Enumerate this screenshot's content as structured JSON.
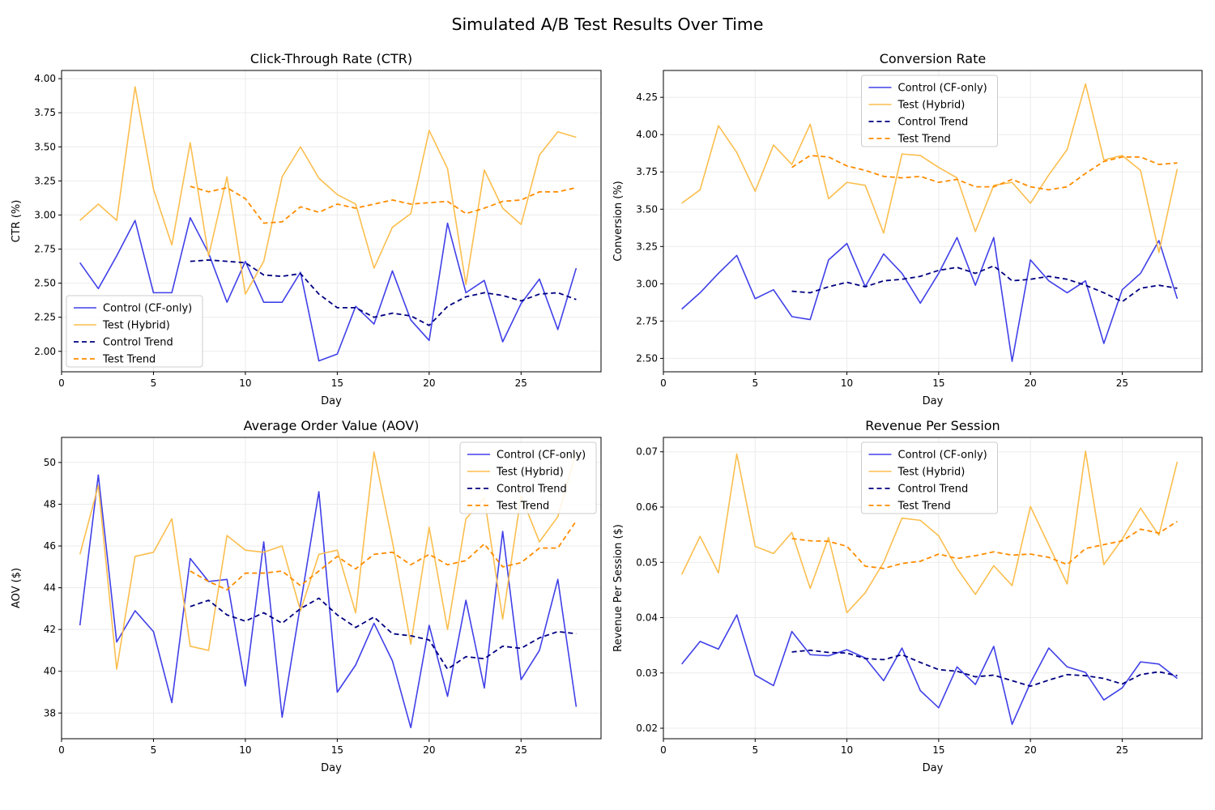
{
  "figure_title": "Simulated A/B Test Results Over Time",
  "colors": {
    "control": "#4040e8",
    "test": "#fbbe4e",
    "control_trend": "#000080",
    "test_trend": "#ff8c00",
    "grid": "#ebebeb",
    "axis": "#000000"
  },
  "chart_data": [
    {
      "type": "line",
      "title": "Click-Through Rate (CTR)",
      "xlabel": "Day",
      "ylabel": "CTR (%)",
      "xlim": [
        0,
        29.35
      ],
      "ylim": [
        1.85,
        4.06
      ],
      "xticks": [
        0,
        5,
        10,
        15,
        20,
        25
      ],
      "yticks": [
        2.0,
        2.25,
        2.5,
        2.75,
        3.0,
        3.25,
        3.5,
        3.75,
        4.0
      ],
      "ytick_decimals": 2,
      "grid": true,
      "legend_position": "lower-left",
      "series": [
        {
          "name": "Control (CF-only)",
          "style": "control",
          "x_start": 1,
          "values": [
            2.65,
            2.46,
            2.7,
            2.96,
            2.43,
            2.43,
            2.98,
            2.72,
            2.36,
            2.66,
            2.36,
            2.36,
            2.58,
            1.93,
            1.98,
            2.33,
            2.2,
            2.59,
            2.23,
            2.08,
            2.94,
            2.43,
            2.52,
            2.07,
            2.35,
            2.53,
            2.16,
            2.61
          ]
        },
        {
          "name": "Test (Hybrid)",
          "style": "test",
          "x_start": 1,
          "values": [
            2.96,
            3.08,
            2.96,
            3.94,
            3.19,
            2.78,
            3.53,
            2.7,
            3.28,
            2.42,
            2.66,
            3.28,
            3.5,
            3.27,
            3.15,
            3.08,
            2.61,
            2.91,
            3.01,
            3.62,
            3.34,
            2.49,
            3.33,
            3.05,
            2.93,
            3.44,
            3.61,
            3.57
          ]
        },
        {
          "name": "Control Trend",
          "style": "control_trend",
          "x_start": 7,
          "values": [
            2.66,
            2.67,
            2.66,
            2.65,
            2.56,
            2.55,
            2.57,
            2.42,
            2.32,
            2.32,
            2.25,
            2.28,
            2.26,
            2.19,
            2.33,
            2.4,
            2.43,
            2.41,
            2.37,
            2.42,
            2.43,
            2.38
          ]
        },
        {
          "name": "Test Trend",
          "style": "test_trend",
          "x_start": 7,
          "values": [
            3.21,
            3.17,
            3.2,
            3.12,
            2.94,
            2.95,
            3.06,
            3.02,
            3.08,
            3.05,
            3.08,
            3.11,
            3.08,
            3.09,
            3.1,
            3.01,
            3.05,
            3.1,
            3.11,
            3.17,
            3.17,
            3.2
          ]
        }
      ]
    },
    {
      "type": "line",
      "title": "Conversion Rate",
      "xlabel": "Day",
      "ylabel": "Conversion (%)",
      "xlim": [
        0,
        29.35
      ],
      "ylim": [
        2.41,
        4.43
      ],
      "xticks": [
        0,
        5,
        10,
        15,
        20,
        25
      ],
      "yticks": [
        2.5,
        2.75,
        3.0,
        3.25,
        3.5,
        3.75,
        4.0,
        4.25
      ],
      "ytick_decimals": 2,
      "grid": true,
      "legend_position": "upper-center",
      "series": [
        {
          "name": "Control (CF-only)",
          "style": "control",
          "x_start": 1,
          "values": [
            2.83,
            2.94,
            3.07,
            3.19,
            2.9,
            2.96,
            2.78,
            2.76,
            3.16,
            3.27,
            2.98,
            3.2,
            3.07,
            2.87,
            3.07,
            3.31,
            2.99,
            3.31,
            2.48,
            3.16,
            3.02,
            2.94,
            3.02,
            2.6,
            2.96,
            3.07,
            3.29,
            2.9
          ]
        },
        {
          "name": "Test (Hybrid)",
          "style": "test",
          "x_start": 1,
          "values": [
            3.54,
            3.63,
            4.06,
            3.88,
            3.62,
            3.93,
            3.8,
            4.07,
            3.57,
            3.68,
            3.66,
            3.34,
            3.87,
            3.86,
            3.78,
            3.71,
            3.35,
            3.66,
            3.68,
            3.54,
            3.73,
            3.9,
            4.34,
            3.83,
            3.86,
            3.76,
            3.21,
            3.77
          ]
        },
        {
          "name": "Control Trend",
          "style": "control_trend",
          "x_start": 7,
          "values": [
            2.95,
            2.94,
            2.98,
            3.01,
            2.98,
            3.02,
            3.03,
            3.05,
            3.09,
            3.11,
            3.07,
            3.12,
            3.02,
            3.03,
            3.05,
            3.03,
            2.99,
            2.94,
            2.88,
            2.97,
            2.99,
            2.97
          ]
        },
        {
          "name": "Test Trend",
          "style": "test_trend",
          "x_start": 7,
          "values": [
            3.78,
            3.86,
            3.85,
            3.79,
            3.76,
            3.72,
            3.71,
            3.72,
            3.68,
            3.7,
            3.65,
            3.65,
            3.7,
            3.65,
            3.63,
            3.65,
            3.74,
            3.82,
            3.85,
            3.85,
            3.8,
            3.81
          ]
        }
      ]
    },
    {
      "type": "line",
      "title": "Average Order Value (AOV)",
      "xlabel": "Day",
      "ylabel": "AOV ($)",
      "xlim": [
        0,
        29.35
      ],
      "ylim": [
        36.77,
        51.2
      ],
      "xticks": [
        0,
        5,
        10,
        15,
        20,
        25
      ],
      "yticks": [
        38,
        40,
        42,
        44,
        46,
        48,
        50
      ],
      "ytick_decimals": 0,
      "grid": true,
      "legend_position": "upper-right",
      "series": [
        {
          "name": "Control (CF-only)",
          "style": "control",
          "x_start": 1,
          "values": [
            42.2,
            49.4,
            41.4,
            42.9,
            41.9,
            38.5,
            45.4,
            44.3,
            44.4,
            39.3,
            46.2,
            37.8,
            43.2,
            48.6,
            39.0,
            40.3,
            42.3,
            40.5,
            37.3,
            42.2,
            38.8,
            43.4,
            39.2,
            46.7,
            39.6,
            41.0,
            44.4,
            38.3
          ]
        },
        {
          "name": "Test (Hybrid)",
          "style": "test",
          "x_start": 1,
          "values": [
            45.6,
            48.9,
            40.1,
            45.5,
            45.7,
            47.3,
            41.2,
            41.0,
            46.5,
            45.8,
            45.7,
            46.0,
            42.9,
            45.6,
            45.8,
            42.8,
            50.5,
            46.2,
            41.3,
            46.9,
            42.0,
            47.3,
            48.3,
            42.5,
            48.4,
            46.2,
            47.4,
            50.5
          ]
        },
        {
          "name": "Control Trend",
          "style": "control_trend",
          "x_start": 7,
          "values": [
            43.1,
            43.4,
            42.7,
            42.4,
            42.8,
            42.3,
            43.0,
            43.5,
            42.7,
            42.1,
            42.6,
            41.8,
            41.7,
            41.5,
            40.1,
            40.7,
            40.6,
            41.2,
            41.1,
            41.6,
            41.9,
            41.8
          ]
        },
        {
          "name": "Test Trend",
          "style": "test_trend",
          "x_start": 7,
          "values": [
            44.8,
            44.3,
            43.9,
            44.7,
            44.7,
            44.8,
            44.1,
            44.8,
            45.5,
            44.9,
            45.6,
            45.7,
            45.1,
            45.6,
            45.1,
            45.3,
            46.1,
            45.0,
            45.2,
            45.9,
            45.9,
            47.2
          ]
        }
      ]
    },
    {
      "type": "line",
      "title": "Revenue Per Session",
      "xlabel": "Day",
      "ylabel": "Revenue Per Session ($)",
      "xlim": [
        0,
        29.35
      ],
      "ylim": [
        0.0181,
        0.0726
      ],
      "xticks": [
        0,
        5,
        10,
        15,
        20,
        25
      ],
      "yticks": [
        0.02,
        0.03,
        0.04,
        0.05,
        0.06,
        0.07
      ],
      "ytick_decimals": 2,
      "grid": true,
      "legend_position": "upper-center",
      "series": [
        {
          "name": "Control (CF-only)",
          "style": "control",
          "x_start": 1,
          "values": [
            0.0316,
            0.0357,
            0.0343,
            0.0405,
            0.0296,
            0.0277,
            0.0375,
            0.0333,
            0.0331,
            0.0342,
            0.0327,
            0.0286,
            0.0345,
            0.0268,
            0.0237,
            0.0311,
            0.0279,
            0.0348,
            0.0207,
            0.0282,
            0.0345,
            0.0311,
            0.0301,
            0.0251,
            0.0273,
            0.032,
            0.0316,
            0.029
          ]
        },
        {
          "name": "Test (Hybrid)",
          "style": "test",
          "x_start": 1,
          "values": [
            0.0478,
            0.0547,
            0.0481,
            0.0696,
            0.0529,
            0.0516,
            0.0554,
            0.0453,
            0.0545,
            0.0409,
            0.0445,
            0.05,
            0.058,
            0.0576,
            0.0548,
            0.0489,
            0.0442,
            0.0494,
            0.0458,
            0.0601,
            0.0531,
            0.0461,
            0.0701,
            0.0496,
            0.0542,
            0.0598,
            0.0549,
            0.0682
          ]
        },
        {
          "name": "Control Trend",
          "style": "control_trend",
          "x_start": 7,
          "values": [
            0.0338,
            0.0341,
            0.0337,
            0.0336,
            0.0326,
            0.0324,
            0.0333,
            0.0319,
            0.0306,
            0.0303,
            0.0293,
            0.0296,
            0.0286,
            0.0276,
            0.0287,
            0.0297,
            0.0295,
            0.029,
            0.028,
            0.0297,
            0.0302,
            0.0295
          ]
        },
        {
          "name": "Test Trend",
          "style": "test_trend",
          "x_start": 7,
          "values": [
            0.0543,
            0.0539,
            0.0538,
            0.0529,
            0.0493,
            0.0489,
            0.0498,
            0.0502,
            0.0515,
            0.0507,
            0.0512,
            0.0519,
            0.0513,
            0.0515,
            0.0509,
            0.0496,
            0.0525,
            0.0532,
            0.0539,
            0.056,
            0.0553,
            0.0574
          ]
        }
      ]
    }
  ]
}
